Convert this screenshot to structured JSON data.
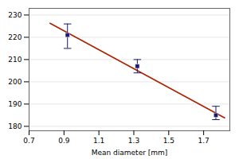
{
  "chart_data": {
    "type": "scatter",
    "xlabel": "Mean diameter [mm]",
    "xlim": [
      0.7,
      1.85
    ],
    "ylim": [
      178,
      233
    ],
    "xticks": [
      0.7,
      0.9,
      1.1,
      1.3,
      1.5,
      1.7
    ],
    "yticks": [
      180,
      190,
      200,
      210,
      220,
      230
    ],
    "grid": "y",
    "series": [
      {
        "type": "line",
        "color": "#aa2200",
        "line_style": "solid",
        "x": [
          0.82,
          1.82
        ],
        "values": [
          226.3026,
          183.7815
        ]
      },
      {
        "type": "scatter",
        "color": "#1a1a6e",
        "marker": "square",
        "x": [
          0.92,
          1.32,
          1.77
        ],
        "values": [
          221,
          207,
          185
        ],
        "yerr_upper": [
          5,
          3,
          4
        ],
        "yerr_lower": [
          6,
          3,
          2
        ]
      }
    ]
  }
}
